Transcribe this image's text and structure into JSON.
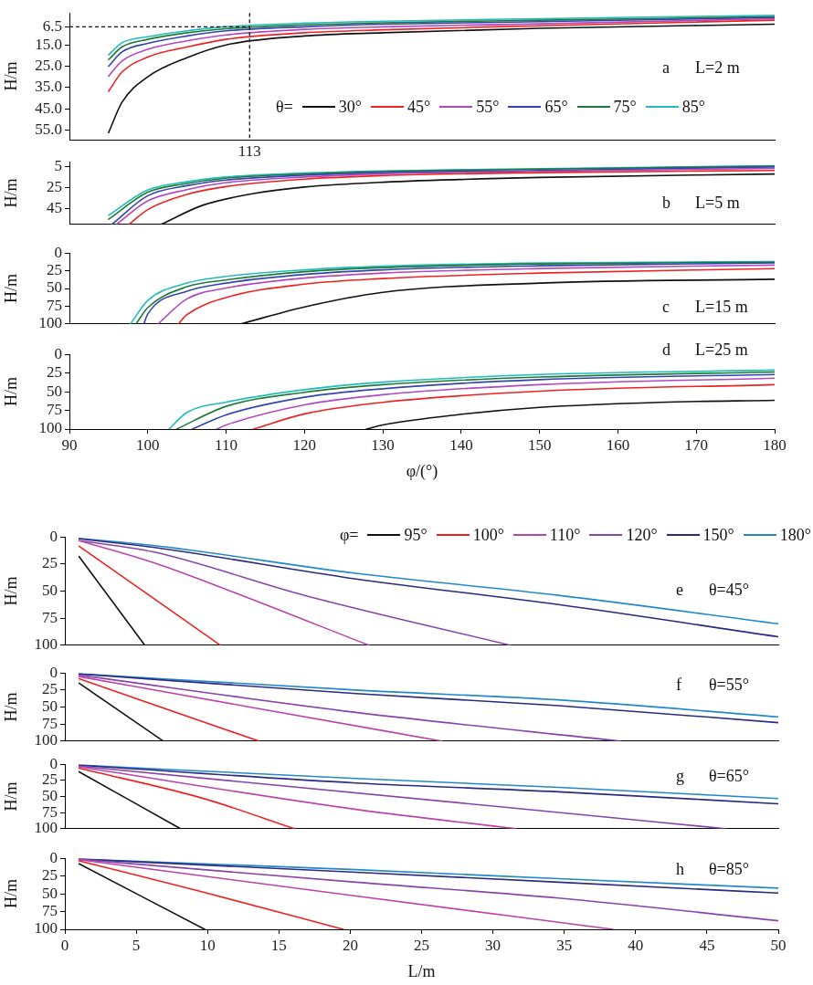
{
  "chart_data": [
    {
      "type": "line",
      "ylabel": "H/m",
      "legend_title": "θ=",
      "legend": "bottom right",
      "tick_labels": "y",
      "xlim": [
        90,
        180
      ],
      "ylim": [
        59.5,
        0
      ],
      "yticks": [
        {
          "value": 6.5,
          "label": "6.5"
        },
        {
          "value": 15,
          "label": "15.0"
        },
        {
          "value": 25,
          "label": "25.0"
        },
        {
          "value": 35,
          "label": "35.0"
        },
        {
          "value": 45,
          "label": "45.0"
        },
        {
          "value": 55,
          "label": "55.0"
        }
      ],
      "x": [
        95,
        96.7,
        100,
        105,
        110,
        120,
        130,
        150,
        180
      ],
      "ref_lines": [
        {
          "axis": "x",
          "value": 113,
          "label": "113",
          "line_style": "dashed"
        },
        {
          "axis": "y",
          "value": 6.5,
          "line_style": "dashed"
        }
      ],
      "annotations": [
        "a",
        "L=2 m"
      ],
      "series": [
        {
          "name": "30°",
          "color": "#111111",
          "values": [
            56.2,
            42,
            30,
            21,
            15,
            10.8,
            9.3,
            7.2,
            5.3
          ]
        },
        {
          "name": "45°",
          "color": "#ee2222",
          "values": [
            36.8,
            27.8,
            20.7,
            16,
            12.4,
            9.3,
            7.9,
            6,
            3.4
          ]
        },
        {
          "name": "55°",
          "color": "#b048c0",
          "values": [
            29.7,
            22.6,
            17.1,
            13.1,
            10.3,
            7.7,
            6.5,
            5.1,
            2.7
          ]
        },
        {
          "name": "65°",
          "color": "#3344aa",
          "values": [
            25,
            18.3,
            14.3,
            10.8,
            8.4,
            6.5,
            5.3,
            4.1,
            2.2
          ]
        },
        {
          "name": "75°",
          "color": "#1f7a3a",
          "values": [
            21.9,
            16,
            12.4,
            9.3,
            7.4,
            5.6,
            4.6,
            3.4,
            1.8
          ]
        },
        {
          "name": "85°",
          "color": "#22bbbb",
          "values": [
            19.7,
            14,
            11.2,
            8.4,
            6.5,
            4.8,
            3.9,
            2.7,
            1.1
          ]
        }
      ]
    },
    {
      "type": "line",
      "ylabel": "H/m",
      "tick_labels": "y",
      "xlim": [
        90,
        180
      ],
      "ylim": [
        60,
        0
      ],
      "yticks": [
        5,
        25,
        45
      ],
      "annotations": [
        "b",
        "L=5 m"
      ],
      "series": [
        {
          "color": "#111111",
          "x": [
            101.7,
            107,
            113.5,
            120,
            130,
            150,
            180
          ],
          "values": [
            60,
            41.7,
            30.4,
            24.2,
            19.6,
            15,
            11.7
          ]
        },
        {
          "color": "#ee2222",
          "x": [
            97.6,
            100,
            105,
            110,
            120,
            130,
            150,
            180
          ],
          "values": [
            60,
            45.8,
            31.3,
            23.8,
            16.7,
            13.3,
            10.4,
            8.3
          ]
        },
        {
          "color": "#b048c0",
          "x": [
            96,
            100,
            105,
            110,
            120,
            130,
            150,
            180
          ],
          "values": [
            60,
            37.5,
            26.7,
            20,
            14.6,
            11.7,
            9.2,
            6.3
          ]
        },
        {
          "color": "#3344aa",
          "x": [
            95.4,
            100,
            105,
            110,
            120,
            130,
            150,
            180
          ],
          "values": [
            60,
            32.5,
            22.9,
            17.5,
            12.9,
            10.4,
            8.3,
            5
          ]
        },
        {
          "color": "#1f7a3a",
          "x": [
            95,
            100,
            105,
            110,
            120,
            130,
            150,
            180
          ],
          "values": [
            55,
            29.2,
            20.8,
            15.8,
            11.7,
            9.2,
            7.1,
            4.2
          ]
        },
        {
          "color": "#22bbbb",
          "x": [
            95,
            100,
            105,
            110,
            120,
            130,
            150,
            180
          ],
          "values": [
            51.3,
            27,
            19.2,
            14.6,
            10.8,
            8.8,
            6.7,
            3.8
          ]
        }
      ]
    },
    {
      "type": "line",
      "ylabel": "H/m",
      "tick_labels": "y",
      "xlim": [
        90,
        180
      ],
      "ylim": [
        100,
        0
      ],
      "yticks": [
        0,
        25,
        50,
        75,
        100
      ],
      "annotations": [
        "c",
        "L=15 m"
      ],
      "series": [
        {
          "color": "#111111",
          "x": [
            111.9,
            120,
            130,
            150,
            180
          ],
          "values": [
            100,
            76,
            55.4,
            42.4,
            37
          ]
        },
        {
          "color": "#ee2222",
          "x": [
            103.9,
            105,
            110,
            120,
            130,
            150,
            180
          ],
          "values": [
            100,
            87,
            62.8,
            43.9,
            36,
            28.3,
            22
          ]
        },
        {
          "color": "#b048c0",
          "x": [
            101.3,
            105,
            110,
            120,
            130,
            150,
            180
          ],
          "values": [
            100,
            64.6,
            49.4,
            35.4,
            28.3,
            21.8,
            17
          ]
        },
        {
          "color": "#3344aa",
          "x": [
            99.5,
            100,
            105,
            110,
            120,
            130,
            150,
            180
          ],
          "values": [
            100,
            86,
            54,
            42.4,
            30.2,
            23.7,
            18,
            14
          ]
        },
        {
          "color": "#1f7a3a",
          "x": [
            98.5,
            100,
            105,
            110,
            120,
            130,
            150,
            180
          ],
          "values": [
            100,
            77,
            47.5,
            38,
            26.3,
            20.5,
            15.4,
            13
          ]
        },
        {
          "color": "#22bbbb",
          "x": [
            97.8,
            100,
            105,
            110,
            120,
            130,
            150,
            180
          ],
          "values": [
            100,
            67,
            42.4,
            33,
            23.7,
            18.6,
            14.1,
            12
          ]
        }
      ]
    },
    {
      "type": "line",
      "xlabel": "φ/(°)",
      "ylabel": "H/m",
      "xlim": [
        90,
        180
      ],
      "xticks": [
        90,
        100,
        110,
        120,
        130,
        140,
        150,
        160,
        170,
        180
      ],
      "ylim": [
        100,
        0
      ],
      "yticks": [
        0,
        25,
        50,
        75,
        100
      ],
      "annotations": [
        "d",
        "L=25 m"
      ],
      "series": [
        {
          "color": "#111111",
          "x": [
            127.9,
            130,
            139.4,
            150,
            165.3,
            180
          ],
          "values": [
            100,
            94.6,
            81,
            71,
            64.2,
            61.5
          ]
        },
        {
          "color": "#ee2222",
          "x": [
            113.5,
            120,
            130,
            150,
            180
          ],
          "values": [
            100,
            79.7,
            64.2,
            49.3,
            40.5
          ]
        },
        {
          "color": "#b048c0",
          "x": [
            108.8,
            110,
            120,
            130,
            150,
            180
          ],
          "values": [
            100,
            94.6,
            67.6,
            54,
            40.5,
            31.8
          ]
        },
        {
          "color": "#3344aa",
          "x": [
            105.7,
            110,
            120,
            130,
            150,
            180
          ],
          "values": [
            100,
            81,
            57.4,
            46,
            33.8,
            27
          ]
        },
        {
          "color": "#1f7a3a",
          "x": [
            103.7,
            110,
            120,
            130,
            150,
            180
          ],
          "values": [
            100,
            69.6,
            50.7,
            40.5,
            30.4,
            23.6
          ]
        },
        {
          "color": "#22bbbb",
          "x": [
            102.7,
            105,
            110,
            120,
            130,
            150,
            180
          ],
          "values": [
            100,
            77.7,
            64,
            47.3,
            37.2,
            27,
            21
          ]
        }
      ]
    },
    {
      "type": "line",
      "ylabel": "H/m",
      "legend_title": "φ=",
      "legend": "top right",
      "tick_labels": "y",
      "xlim": [
        0,
        50
      ],
      "ylim": [
        100,
        0
      ],
      "yticks": [
        0,
        25,
        50,
        75,
        100
      ],
      "annotations": [
        "e",
        "θ=45°"
      ],
      "series": [
        {
          "name": "95°",
          "color": "#111111",
          "x": [
            1,
            5.6
          ],
          "values": [
            18.1,
            100
          ]
        },
        {
          "name": "100°",
          "color": "#ee2222",
          "x": [
            1,
            10.9
          ],
          "values": [
            8.6,
            100
          ]
        },
        {
          "name": "110°",
          "color": "#bb44aa",
          "x": [
            1,
            6.2,
            11.1,
            21.3
          ],
          "values": [
            3.4,
            23.7,
            47.4,
            100
          ]
        },
        {
          "name": "120°",
          "color": "#8844aa",
          "x": [
            1,
            6.2,
            16.8,
            31.2
          ],
          "values": [
            3.4,
            13.8,
            54,
            100
          ]
        },
        {
          "name": "150°",
          "color": "#2a2a80",
          "x": [
            1,
            6.2,
            20.4,
            34.6,
            50
          ],
          "values": [
            1.7,
            9.5,
            38.8,
            62.5,
            92.2
          ]
        },
        {
          "name": "180°",
          "color": "#2288cc",
          "x": [
            1,
            6.2,
            20.4,
            34.6,
            50
          ],
          "values": [
            1.3,
            7.8,
            33.6,
            53.9,
            80.2
          ]
        }
      ]
    },
    {
      "type": "line",
      "ylabel": "H/m",
      "tick_labels": "y",
      "xlim": [
        0,
        50
      ],
      "ylim": [
        100,
        0
      ],
      "yticks": [
        0,
        25,
        50,
        75,
        100
      ],
      "annotations": [
        "f",
        "θ=55°"
      ],
      "series": [
        {
          "color": "#111111",
          "x": [
            1,
            6.9
          ],
          "values": [
            15.1,
            100
          ]
        },
        {
          "color": "#ee2222",
          "x": [
            1,
            13.6
          ],
          "values": [
            8.6,
            100
          ]
        },
        {
          "color": "#bb44aa",
          "x": [
            1,
            13.3,
            26.4
          ],
          "values": [
            5.3,
            51.3,
            100
          ]
        },
        {
          "color": "#8844aa",
          "x": [
            1,
            20.4,
            38.9
          ],
          "values": [
            3.3,
            57.9,
            100
          ]
        },
        {
          "color": "#2a2a80",
          "x": [
            1,
            20.4,
            34.6,
            50
          ],
          "values": [
            1.5,
            30.3,
            48,
            73
          ]
        },
        {
          "color": "#2288cc",
          "x": [
            1,
            20.4,
            34.6,
            50
          ],
          "values": [
            1.3,
            25,
            39.5,
            64.5
          ]
        }
      ]
    },
    {
      "type": "line",
      "ylabel": "H/m",
      "tick_labels": "y",
      "xlim": [
        0,
        50
      ],
      "ylim": [
        100,
        0
      ],
      "yticks": [
        0,
        25,
        50,
        75,
        100
      ],
      "annotations": [
        "g",
        "θ=65°"
      ],
      "series": [
        {
          "color": "#111111",
          "x": [
            1,
            8.1
          ],
          "values": [
            11.7,
            100
          ]
        },
        {
          "color": "#ee2222",
          "x": [
            1,
            9.7,
            16.1
          ],
          "values": [
            6.2,
            53,
            100
          ]
        },
        {
          "color": "#bb44aa",
          "x": [
            1,
            20.4,
            31.6
          ],
          "values": [
            4,
            70,
            100
          ]
        },
        {
          "color": "#8844aa",
          "x": [
            1,
            31,
            46.3
          ],
          "values": [
            3,
            67,
            100
          ]
        },
        {
          "color": "#2a2a80",
          "x": [
            1,
            20.4,
            34.6,
            50
          ],
          "values": [
            1.5,
            29,
            42.8,
            61.4
          ]
        },
        {
          "color": "#2288cc",
          "x": [
            1,
            20.4,
            34.6,
            50
          ],
          "values": [
            1.3,
            22,
            35.9,
            53.1
          ]
        }
      ]
    },
    {
      "type": "line",
      "xlabel": "L/m",
      "ylabel": "H/m",
      "xlim": [
        0,
        50
      ],
      "xticks": [
        0,
        5,
        10,
        15,
        20,
        25,
        30,
        35,
        40,
        45,
        50
      ],
      "ylim": [
        100,
        0
      ],
      "yticks": [
        0,
        25,
        50,
        75,
        100
      ],
      "annotations": [
        "h",
        "θ=85°"
      ],
      "series": [
        {
          "color": "#111111",
          "x": [
            1,
            9.8
          ],
          "values": [
            7.7,
            100
          ]
        },
        {
          "color": "#ee2222",
          "x": [
            1,
            9.7,
            19.5
          ],
          "values": [
            3.5,
            47.6,
            100
          ]
        },
        {
          "color": "#bb44aa",
          "x": [
            1,
            20.4,
            38.4
          ],
          "values": [
            2,
            53.1,
            100
          ]
        },
        {
          "color": "#8844aa",
          "x": [
            1,
            20.4,
            34.6,
            50
          ],
          "values": [
            1.5,
            33.6,
            56,
            88
          ]
        },
        {
          "color": "#2a2a80",
          "x": [
            1,
            20.4,
            34.6,
            50
          ],
          "values": [
            1.2,
            19.6,
            33.6,
            49
          ]
        },
        {
          "color": "#2288cc",
          "x": [
            1,
            20.4,
            34.6,
            50
          ],
          "values": [
            1,
            16,
            28.7,
            42
          ]
        }
      ]
    }
  ]
}
